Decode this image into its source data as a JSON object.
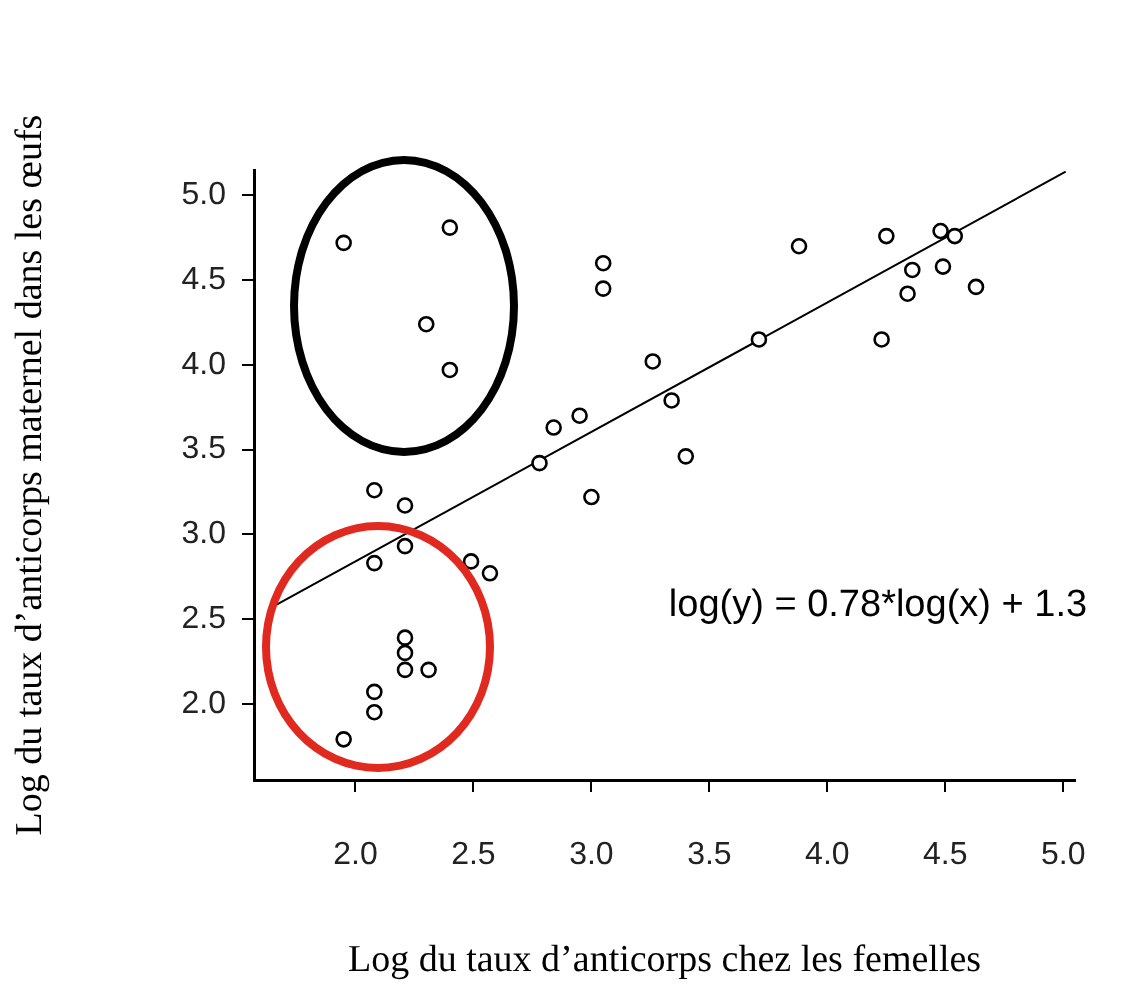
{
  "chart_data": {
    "type": "scatter",
    "xlabel": "Log du taux d’anticorps chez les femelles",
    "ylabel": "Log du taux d’anticorps maternel dans les œufs",
    "xlim": [
      1.57,
      5.05
    ],
    "ylim": [
      1.55,
      5.15
    ],
    "xticks": [
      {
        "value": 2,
        "label": "2.0"
      },
      2.5,
      {
        "value": 3,
        "label": "3.0"
      },
      3.5,
      {
        "value": 4,
        "label": "4.0"
      },
      4.5,
      {
        "value": 5,
        "label": "5.0"
      }
    ],
    "yticks": [
      {
        "value": 2,
        "label": "2.0"
      },
      2.5,
      {
        "value": 3,
        "label": "3.0"
      },
      3.5,
      {
        "value": 4,
        "label": "4.0"
      },
      4.5,
      {
        "value": 5,
        "label": "5.0"
      }
    ],
    "grid": false,
    "legend": false,
    "marker": "circle",
    "annotations": [
      "log(y) = 0.78*log(x) + 1.3"
    ],
    "series": [
      {
        "color": "#000000",
        "x": [
          1.95,
          2.4,
          2.3,
          2.4,
          3.05,
          3.05,
          3.26,
          2.84,
          2.95,
          2.78,
          3.0,
          2.08,
          2.21,
          2.21,
          2.08,
          2.49,
          2.57,
          2.21,
          2.21,
          2.21,
          2.31,
          2.08,
          2.08,
          1.95,
          3.34,
          3.4,
          3.71,
          3.88,
          4.25,
          4.23,
          4.36,
          4.34,
          4.48,
          4.54,
          4.49,
          4.63
        ],
        "values": [
          4.72,
          4.81,
          4.24,
          3.97,
          4.6,
          4.45,
          4.02,
          3.63,
          3.7,
          3.42,
          3.22,
          3.26,
          3.17,
          2.93,
          2.83,
          2.84,
          2.77,
          2.39,
          2.3,
          2.2,
          2.2,
          2.07,
          1.95,
          1.79,
          3.79,
          3.46,
          4.15,
          4.7,
          4.76,
          4.15,
          4.56,
          4.42,
          4.79,
          4.76,
          4.58,
          4.46
        ]
      },
      {
        "type": "line",
        "color": "#000000",
        "marker": "none",
        "x": [
          1.66,
          5.01
        ],
        "values": [
          2.58,
          5.14
        ]
      }
    ]
  }
}
